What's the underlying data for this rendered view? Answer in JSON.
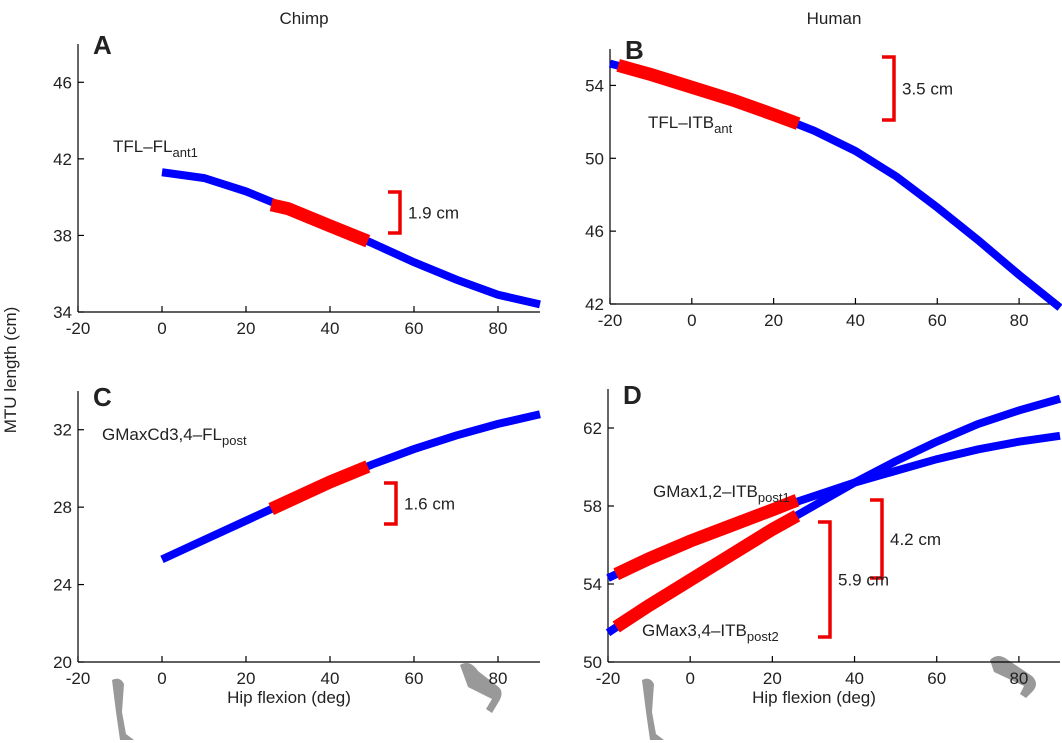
{
  "ylabel": "MTU length (cm)",
  "chart_data": [
    {
      "type": "line",
      "panel": "A",
      "title": "Chimp",
      "xlim": [
        -20,
        90
      ],
      "xticks": [
        -20,
        0,
        20,
        40,
        60,
        80
      ],
      "ylim": [
        34,
        48
      ],
      "yticks": [
        34,
        38,
        42,
        46
      ],
      "series": [
        {
          "color": "#0000ff",
          "x": [
            0,
            10,
            20,
            30,
            40,
            50,
            60,
            70,
            80,
            90
          ],
          "values": [
            41.3,
            41.0,
            40.3,
            39.4,
            38.5,
            37.6,
            36.6,
            35.7,
            34.9,
            34.4
          ]
        },
        {
          "color": "#ff0000",
          "x": [
            26,
            30,
            40,
            49
          ],
          "values": [
            39.6,
            39.4,
            38.5,
            37.7
          ]
        }
      ],
      "annotations": [
        {
          "text": "TFL–FL",
          "sub": "ant1"
        }
      ],
      "scale_bars": [
        "1.9 cm"
      ]
    },
    {
      "type": "line",
      "panel": "B",
      "title": "Human",
      "xlim": [
        -20,
        90
      ],
      "xticks": [
        -20,
        0,
        20,
        40,
        60,
        80
      ],
      "ylim": [
        42,
        56
      ],
      "yticks": [
        42,
        46,
        50,
        54
      ],
      "series": [
        {
          "color": "#0000ff",
          "x": [
            -20,
            -10,
            0,
            10,
            20,
            30,
            40,
            50,
            60,
            70,
            80,
            90
          ],
          "values": [
            55.2,
            54.6,
            53.9,
            53.2,
            52.4,
            51.5,
            50.4,
            49.0,
            47.3,
            45.5,
            43.6,
            41.8
          ]
        },
        {
          "color": "#ff0000",
          "x": [
            -18,
            -10,
            0,
            10,
            20,
            26
          ],
          "values": [
            55.1,
            54.6,
            53.9,
            53.2,
            52.4,
            51.9
          ]
        }
      ],
      "annotations": [
        {
          "text": "TFL–ITB",
          "sub": "ant"
        }
      ],
      "scale_bars": [
        "3.5 cm"
      ]
    },
    {
      "type": "line",
      "panel": "C",
      "xlabel": "Hip flexion (deg)",
      "xlim": [
        -20,
        90
      ],
      "xticks": [
        -20,
        0,
        20,
        40,
        60,
        80
      ],
      "ylim": [
        20,
        34
      ],
      "yticks": [
        20,
        24,
        28,
        32
      ],
      "series": [
        {
          "color": "#0000ff",
          "x": [
            0,
            10,
            20,
            30,
            40,
            50,
            60,
            70,
            80,
            90
          ],
          "values": [
            25.3,
            26.3,
            27.3,
            28.3,
            29.3,
            30.2,
            31.0,
            31.7,
            32.3,
            32.8
          ]
        },
        {
          "color": "#ff0000",
          "x": [
            26,
            30,
            40,
            49
          ],
          "values": [
            27.9,
            28.3,
            29.3,
            30.1
          ]
        }
      ],
      "annotations": [
        {
          "text": "GMaxCd3,4–FL",
          "sub": "post"
        }
      ],
      "scale_bars": [
        "1.6 cm"
      ]
    },
    {
      "type": "line",
      "panel": "D",
      "xlabel": "Hip flexion (deg)",
      "xlim": [
        -20,
        90
      ],
      "xticks": [
        -20,
        0,
        20,
        40,
        60,
        80
      ],
      "ylim": [
        50,
        64
      ],
      "yticks": [
        50,
        54,
        58,
        62
      ],
      "series": [
        {
          "color": "#0000ff",
          "x": [
            -20,
            -10,
            0,
            10,
            20,
            30,
            40,
            50,
            60,
            70,
            80,
            90
          ],
          "values": [
            54.3,
            55.3,
            56.2,
            57.0,
            57.8,
            58.5,
            59.2,
            59.8,
            60.4,
            60.9,
            61.3,
            61.6
          ]
        },
        {
          "color": "#0000ff",
          "x": [
            -20,
            -10,
            0,
            10,
            20,
            30,
            40,
            50,
            60,
            70,
            80,
            90
          ],
          "values": [
            51.5,
            52.9,
            54.2,
            55.5,
            56.8,
            58.0,
            59.2,
            60.3,
            61.3,
            62.2,
            62.9,
            63.5
          ]
        },
        {
          "color": "#ff0000",
          "x": [
            -18,
            -10,
            0,
            10,
            20,
            26
          ],
          "values": [
            54.5,
            55.3,
            56.2,
            57.0,
            57.8,
            58.3
          ]
        },
        {
          "color": "#ff0000",
          "x": [
            -18,
            -10,
            0,
            10,
            20,
            26
          ],
          "values": [
            51.8,
            52.9,
            54.2,
            55.5,
            56.8,
            57.5
          ]
        }
      ],
      "annotations": [
        {
          "text": "GMax1,2–ITB",
          "sub": "post1"
        },
        {
          "text": "GMax3,4–ITB",
          "sub": "post2"
        }
      ],
      "scale_bars": [
        "4.2 cm",
        "5.9 cm"
      ]
    }
  ]
}
